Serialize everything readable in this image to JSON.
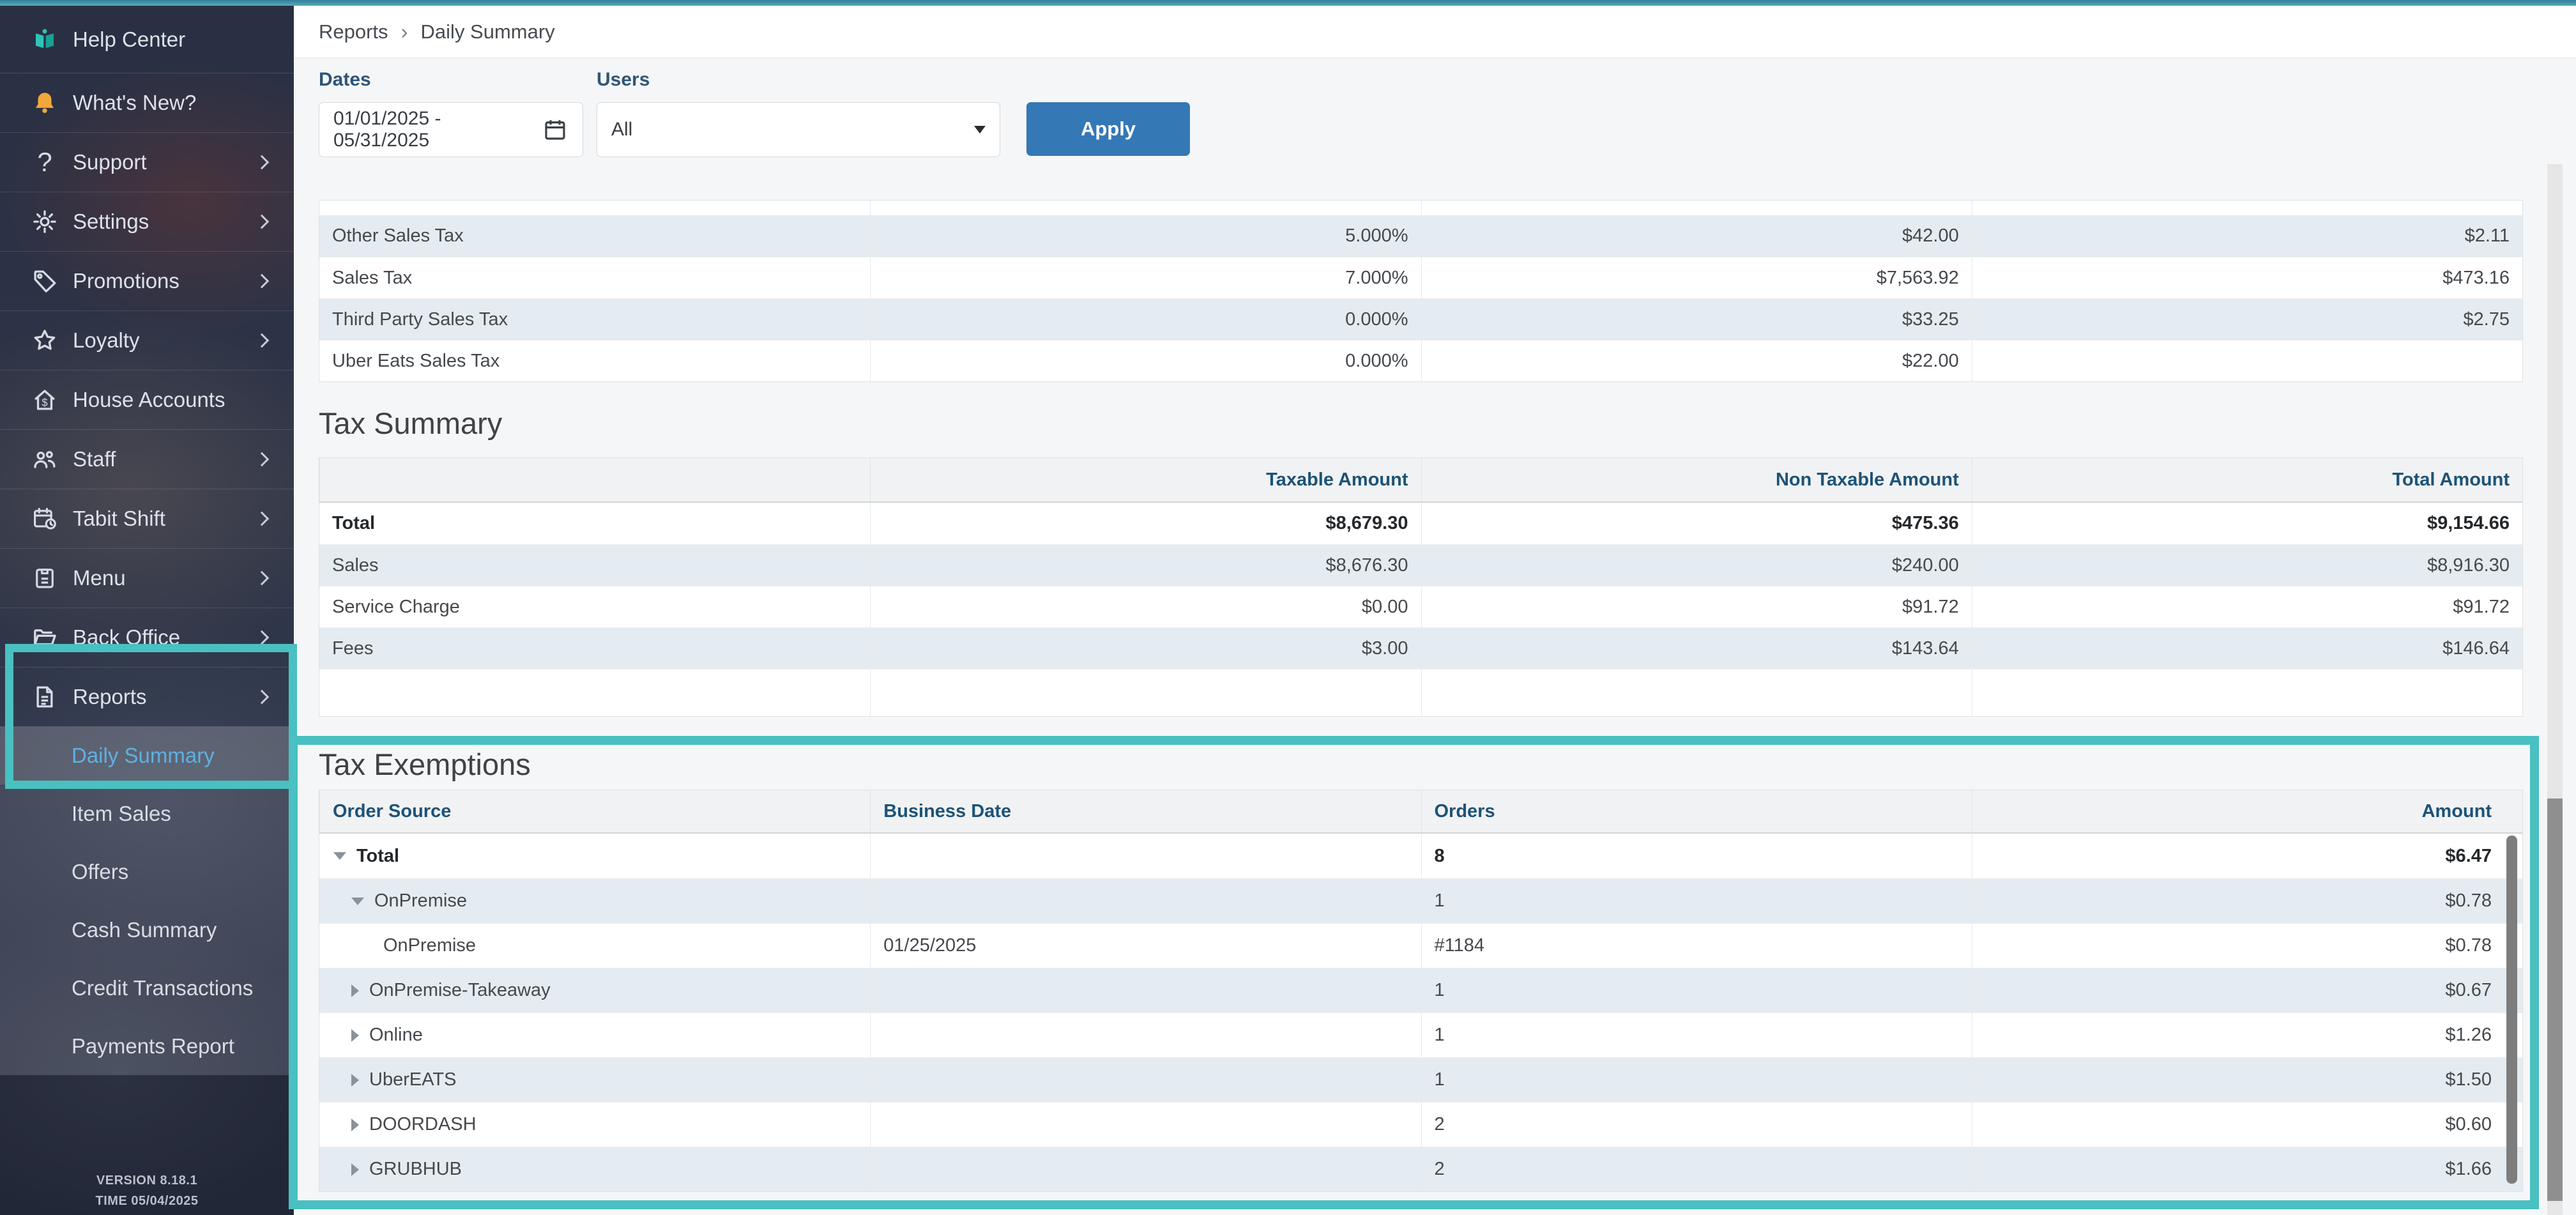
{
  "sidebar": {
    "items": [
      {
        "label": "Help Center",
        "icon": "help-book",
        "chevron": false
      },
      {
        "label": "What's New?",
        "icon": "bell",
        "chevron": false
      },
      {
        "label": "Support",
        "icon": "question-mark",
        "chevron": true
      },
      {
        "label": "Settings",
        "icon": "gear",
        "chevron": true
      },
      {
        "label": "Promotions",
        "icon": "tag",
        "chevron": true
      },
      {
        "label": "Loyalty",
        "icon": "star",
        "chevron": true
      },
      {
        "label": "House Accounts",
        "icon": "house-dollar",
        "chevron": false
      },
      {
        "label": "Staff",
        "icon": "people",
        "chevron": true
      },
      {
        "label": "Tabit Shift",
        "icon": "calendar-clock",
        "chevron": true
      },
      {
        "label": "Menu",
        "icon": "menu-board",
        "chevron": true
      },
      {
        "label": "Back Office",
        "icon": "folder-open",
        "chevron": true
      },
      {
        "label": "Reports",
        "icon": "report-document",
        "chevron": true
      }
    ],
    "submenu": [
      {
        "label": "Daily Summary",
        "selected": true
      },
      {
        "label": "Item Sales",
        "selected": false
      },
      {
        "label": "Offers",
        "selected": false
      },
      {
        "label": "Cash Summary",
        "selected": false
      },
      {
        "label": "Credit Transactions",
        "selected": false
      },
      {
        "label": "Payments Report",
        "selected": false
      }
    ],
    "version": "VERSION 8.18.1",
    "time": "TIME 05/04/2025"
  },
  "breadcrumb": {
    "parent": "Reports",
    "separator": "›",
    "current": "Daily Summary"
  },
  "filters": {
    "dates_label": "Dates",
    "dates_value": "01/01/2025 - 05/31/2025",
    "users_label": "Users",
    "users_value": "All",
    "apply_label": "Apply"
  },
  "tax_rates_table": {
    "rows": [
      {
        "name": "Other Sales Tax",
        "rate": "5.000%",
        "taxable_amount": "$42.00",
        "tax_amount": "$2.11"
      },
      {
        "name": "Sales Tax",
        "rate": "7.000%",
        "taxable_amount": "$7,563.92",
        "tax_amount": "$473.16"
      },
      {
        "name": "Third Party Sales Tax",
        "rate": "0.000%",
        "taxable_amount": "$33.25",
        "tax_amount": "$2.75"
      },
      {
        "name": "Uber Eats Sales Tax",
        "rate": "0.000%",
        "taxable_amount": "$22.00",
        "tax_amount": ""
      }
    ]
  },
  "tax_summary": {
    "title": "Tax Summary",
    "headers": [
      "",
      "Taxable Amount",
      "Non Taxable Amount",
      "Total Amount"
    ],
    "rows": [
      {
        "label": "Total",
        "taxable": "$8,679.30",
        "non_taxable": "$475.36",
        "total": "$9,154.66",
        "bold": true
      },
      {
        "label": "Sales",
        "taxable": "$8,676.30",
        "non_taxable": "$240.00",
        "total": "$8,916.30",
        "bold": false
      },
      {
        "label": "Service Charge",
        "taxable": "$0.00",
        "non_taxable": "$91.72",
        "total": "$91.72",
        "bold": false
      },
      {
        "label": "Fees",
        "taxable": "$3.00",
        "non_taxable": "$143.64",
        "total": "$146.64",
        "bold": false
      }
    ]
  },
  "tax_exemptions": {
    "title": "Tax Exemptions",
    "headers": [
      "Order Source",
      "Business Date",
      "Orders",
      "Amount"
    ],
    "rows": [
      {
        "label": "Total",
        "indent": 0,
        "toggle": "expanded",
        "bold": true,
        "business_date": "",
        "orders": "8",
        "amount": "$6.47"
      },
      {
        "label": "OnPremise",
        "indent": 1,
        "toggle": "expanded",
        "bold": false,
        "business_date": "",
        "orders": "1",
        "amount": "$0.78"
      },
      {
        "label": "OnPremise",
        "indent": 2,
        "toggle": null,
        "bold": false,
        "business_date": "01/25/2025",
        "orders": "#1184",
        "amount": "$0.78"
      },
      {
        "label": "OnPremise-Takeaway",
        "indent": 1,
        "toggle": "collapsed",
        "bold": false,
        "business_date": "",
        "orders": "1",
        "amount": "$0.67"
      },
      {
        "label": "Online",
        "indent": 1,
        "toggle": "collapsed",
        "bold": false,
        "business_date": "",
        "orders": "1",
        "amount": "$1.26"
      },
      {
        "label": "UberEATS",
        "indent": 1,
        "toggle": "collapsed",
        "bold": false,
        "business_date": "",
        "orders": "1",
        "amount": "$1.50"
      },
      {
        "label": "DOORDASH",
        "indent": 1,
        "toggle": "collapsed",
        "bold": false,
        "business_date": "",
        "orders": "2",
        "amount": "$0.60"
      },
      {
        "label": "GRUBHUB",
        "indent": 1,
        "toggle": "collapsed",
        "bold": false,
        "business_date": "",
        "orders": "2",
        "amount": "$1.66"
      }
    ]
  },
  "colors": {
    "annotation_teal": "#49c0c1",
    "accent_blue": "#3478b5",
    "table_header_text": "#1d5377",
    "selected_item_text": "#5fb0e3",
    "top_bar": "#4d9db3",
    "row_alt": "#e4ecf1"
  }
}
